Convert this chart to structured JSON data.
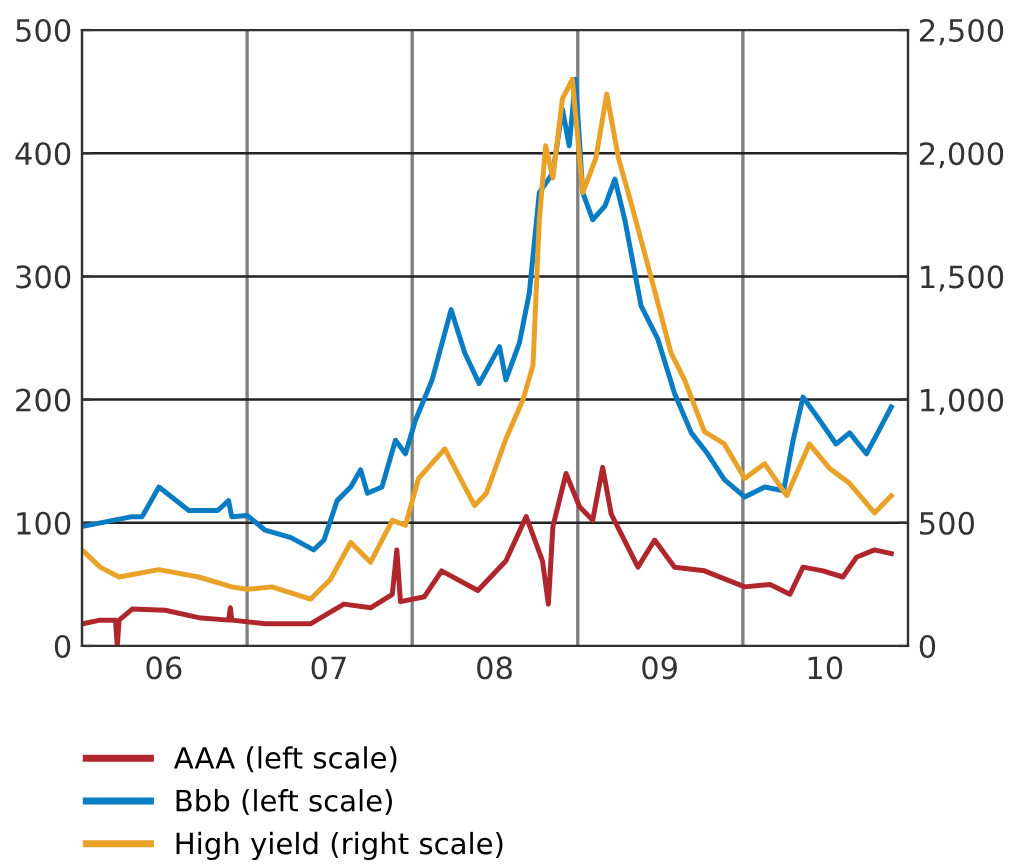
{
  "chart_data": {
    "type": "line",
    "xlim": [
      "2006-01-01",
      "2011-01-01"
    ],
    "xticks": [
      {
        "value": "2006-07-01",
        "label": "06"
      },
      {
        "value": "2007-07-01",
        "label": "07"
      },
      {
        "value": "2008-07-01",
        "label": "08"
      },
      {
        "value": "2009-07-01",
        "label": "09"
      },
      {
        "value": "2010-07-01",
        "label": "10"
      }
    ],
    "ylim": [
      0,
      500
    ],
    "yticks": [
      0,
      100,
      200,
      300,
      400,
      500
    ],
    "y2lim": [
      0,
      2500
    ],
    "y2ticks": [
      {
        "value": 0,
        "label": "0"
      },
      {
        "value": 500,
        "label": "500"
      },
      {
        "value": 1000,
        "label": "1,000"
      },
      {
        "value": 1500,
        "label": "1,500"
      },
      {
        "value": 2000,
        "label": "2,000"
      },
      {
        "value": 2500,
        "label": "2,500"
      }
    ],
    "grid": "y",
    "legend": "bottom",
    "line_style": "solid",
    "ref_lines": [
      {
        "axis": "x",
        "value": "2007-01-01",
        "color": "#808080"
      },
      {
        "axis": "x",
        "value": "2008-01-01",
        "color": "#808080"
      },
      {
        "axis": "x",
        "value": "2009-01-01",
        "color": "#808080"
      },
      {
        "axis": "x",
        "value": "2010-01-01",
        "color": "#808080"
      }
    ],
    "series": [
      {
        "name": "AAA (left scale)",
        "color": "#b0262d",
        "x": [
          "2006-01-01",
          "2006-02-10",
          "2006-03-16",
          "2006-03-20",
          "2006-03-24",
          "2006-04-22",
          "2006-07-04",
          "2006-09-16",
          "2006-11-21",
          "2006-11-25",
          "2006-11-28",
          "2007-02-10",
          "2007-05-21",
          "2007-08-03",
          "2007-10-01",
          "2007-11-18",
          "2007-11-28",
          "2007-12-06",
          "2008-01-28",
          "2008-03-06",
          "2008-05-25",
          "2008-07-26",
          "2008-09-09",
          "2008-10-15",
          "2008-10-28",
          "2008-11-07",
          "2008-12-06",
          "2009-01-05",
          "2009-02-03",
          "2009-02-25",
          "2009-03-16",
          "2009-05-14",
          "2009-06-20",
          "2009-08-03",
          "2009-10-08",
          "2010-01-05",
          "2010-03-02",
          "2010-04-15",
          "2010-05-14",
          "2010-06-27",
          "2010-08-10",
          "2010-09-09",
          "2010-10-19",
          "2010-11-25"
        ],
        "values": [
          18,
          21,
          21,
          0,
          21,
          30,
          29,
          23,
          21,
          31,
          21,
          18,
          18,
          34,
          31,
          42,
          78,
          36,
          40,
          61,
          45,
          69,
          105,
          69,
          34,
          97,
          140,
          113,
          102,
          145,
          107,
          64,
          86,
          64,
          61,
          48,
          50,
          42,
          64,
          61,
          56,
          72,
          78,
          75
        ]
      },
      {
        "name": "Bbb (left scale)",
        "color": "#0a7cc4",
        "x": [
          "2006-01-01",
          "2006-04-22",
          "2006-05-14",
          "2006-06-20",
          "2006-08-25",
          "2006-10-28",
          "2006-11-21",
          "2006-11-28",
          "2007-01-01",
          "2007-02-10",
          "2007-04-08",
          "2007-05-28",
          "2007-06-20",
          "2007-07-19",
          "2007-08-18",
          "2007-09-09",
          "2007-09-24",
          "2007-10-26",
          "2007-11-25",
          "2007-12-17",
          "2008-01-08",
          "2008-02-14",
          "2008-03-27",
          "2008-04-26",
          "2008-05-28",
          "2008-07-12",
          "2008-07-26",
          "2008-08-25",
          "2008-09-16",
          "2008-10-08",
          "2008-11-07",
          "2008-11-28",
          "2008-12-13",
          "2008-12-27",
          "2009-01-12",
          "2009-02-03",
          "2009-03-02",
          "2009-03-24",
          "2009-04-15",
          "2009-05-21",
          "2009-06-27",
          "2009-08-03",
          "2009-09-09",
          "2009-10-15",
          "2009-11-21",
          "2010-01-05",
          "2010-02-18",
          "2010-04-01",
          "2010-04-22",
          "2010-05-14",
          "2010-06-20",
          "2010-07-26",
          "2010-08-25",
          "2010-10-01",
          "2010-10-26",
          "2010-11-25"
        ],
        "values": [
          97,
          105,
          105,
          129,
          110,
          110,
          118,
          105,
          106,
          94,
          88,
          78,
          86,
          118,
          129,
          143,
          124,
          129,
          167,
          156,
          183,
          216,
          273,
          238,
          213,
          243,
          216,
          246,
          287,
          368,
          384,
          436,
          406,
          460,
          368,
          346,
          357,
          379,
          346,
          276,
          249,
          205,
          173,
          156,
          135,
          121,
          129,
          126,
          167,
          202,
          183,
          164,
          173,
          156,
          173,
          194
        ]
      },
      {
        "name": "High yield (right scale)",
        "color": "#e9a228",
        "axis": "y2",
        "x": [
          "2006-01-01",
          "2006-02-10",
          "2006-03-24",
          "2006-06-20",
          "2006-09-16",
          "2006-11-28",
          "2007-01-01",
          "2007-02-25",
          "2007-05-21",
          "2007-07-04",
          "2007-08-18",
          "2007-10-01",
          "2007-11-18",
          "2007-12-17",
          "2008-01-15",
          "2008-03-13",
          "2008-05-18",
          "2008-06-13",
          "2008-07-26",
          "2008-09-02",
          "2008-09-24",
          "2008-10-08",
          "2008-10-22",
          "2008-11-07",
          "2008-11-28",
          "2008-12-20",
          "2009-01-12",
          "2009-02-10",
          "2009-03-06",
          "2009-04-01",
          "2009-04-30",
          "2009-06-13",
          "2009-07-26",
          "2009-08-25",
          "2009-10-08",
          "2009-11-21",
          "2010-01-05",
          "2010-02-18",
          "2010-04-08",
          "2010-05-28",
          "2010-07-12",
          "2010-08-25",
          "2010-10-19",
          "2010-11-25"
        ],
        "values": [
          390,
          320,
          280,
          310,
          280,
          240,
          230,
          240,
          190,
          270,
          420,
          340,
          510,
          490,
          680,
          800,
          570,
          620,
          840,
          1000,
          1140,
          1730,
          2030,
          1900,
          2220,
          2300,
          1840,
          1980,
          2240,
          1980,
          1790,
          1490,
          1190,
          1080,
          870,
          820,
          680,
          740,
          610,
          820,
          720,
          660,
          540,
          610
        ]
      }
    ]
  }
}
